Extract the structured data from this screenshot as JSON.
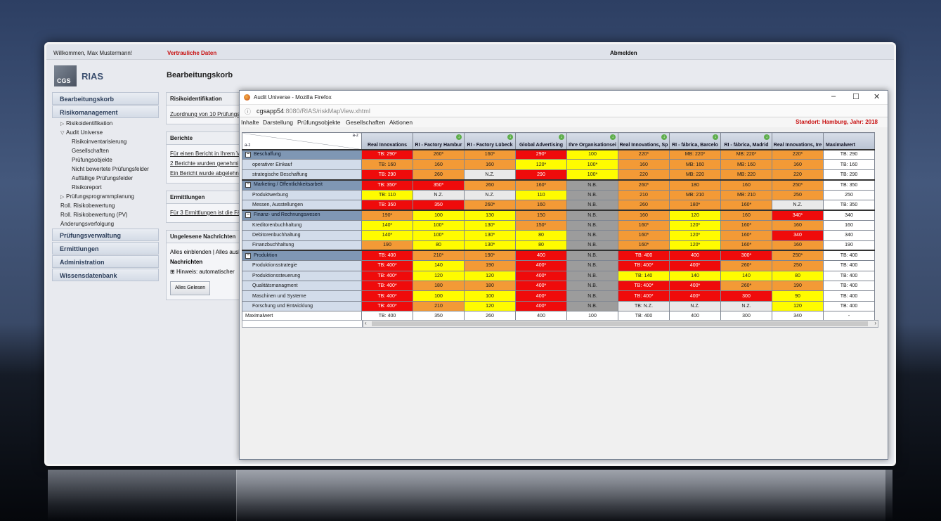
{
  "topbar": {
    "welcome": "Willkommen, Max Mustermann!",
    "confidential": "Vertrauliche Daten",
    "logout": "Abmelden"
  },
  "logo": {
    "text": "CGS",
    "app": "RIAS"
  },
  "page_title": "Bearbeitungskorb",
  "nav": [
    {
      "type": "head",
      "label": "Bearbeitungskorb"
    },
    {
      "type": "head",
      "label": "Risikomanagement"
    },
    {
      "type": "sub1",
      "label": "Risikoidentifikation",
      "icon": "triangle-right-icon"
    },
    {
      "type": "sub1",
      "label": "Audit Universe",
      "icon": "triangle-down-icon"
    },
    {
      "type": "sub2",
      "label": "Risikoinventarisierung"
    },
    {
      "type": "sub2",
      "label": "Gesellschaften"
    },
    {
      "type": "sub2",
      "label": "Prüfungsobjekte"
    },
    {
      "type": "sub2",
      "label": "Nicht bewertete Prüfungsfelder"
    },
    {
      "type": "sub2",
      "label": "Auffällige Prüfungsfelder"
    },
    {
      "type": "sub2",
      "label": "Risikoreport"
    },
    {
      "type": "sub1",
      "label": "Prüfungsprogrammplanung",
      "icon": "triangle-right-icon"
    },
    {
      "type": "sub1",
      "label": "Roll. Risikobewertung"
    },
    {
      "type": "sub1",
      "label": "Roll. Risikobewertung (PV)"
    },
    {
      "type": "sub1",
      "label": "Änderungsverfolgung"
    },
    {
      "type": "head",
      "label": "Prüfungsverwaltung"
    },
    {
      "type": "head",
      "label": "Ermittlungen"
    },
    {
      "type": "head",
      "label": "Administration"
    },
    {
      "type": "head",
      "label": "Wissensdatenbank"
    }
  ],
  "panels": {
    "risiko": {
      "title": "Risikoidentifikation",
      "link": "Zuordnung von 10 Prüfungs"
    },
    "berichte": {
      "title": "Berichte",
      "line1": "Für einen Bericht in Ihrem V",
      "line2": "2 Berichte wurden genehmi",
      "line3": "Ein Bericht wurde abgelehn"
    },
    "ermittlungen": {
      "title": "Ermittlungen",
      "line1": "Für 3 Ermittlungen ist die Fä"
    },
    "nachrichten": {
      "title": "Ungelesene Nachrichten",
      "toggle": "Alles einblenden | Alles ausb",
      "header": "Nachrichten",
      "item": "Hinweis: automatischer",
      "button": "Alles Gelesen"
    }
  },
  "firefox": {
    "title": "Audit Universe - Mozilla Firefox",
    "url_host": "cgsapp54",
    "url_path": ":8080/RIAS/riskMapView.xhtml",
    "menu": [
      "Inhalte",
      "Darstellung",
      "Prüfungsobjekte",
      "Gesellschaften",
      "Aktionen"
    ],
    "location": "Standort: Hamburg, Jahr: 2018"
  },
  "riskmap": {
    "corner_top": "a-z",
    "corner_bottom": "a-z",
    "columns": [
      "Real Innovations",
      "RI - Factory Hambur",
      "RI - Factory Lübeck",
      "Global Advertising",
      "Ihre Organisationsei",
      "Real Innovations, Sp",
      "RI - fábrica, Barcelo",
      "RI - fábrica, Madrid",
      "Real Innovations, Ire",
      "Maximalwert"
    ],
    "rows": [
      {
        "label": "Beschaffung",
        "group": true,
        "cells": [
          [
            "TB: 290*",
            "r"
          ],
          [
            "260*",
            "o"
          ],
          [
            "160*",
            "o"
          ],
          [
            "290*",
            "r"
          ],
          [
            "100",
            "y"
          ],
          [
            "220*",
            "o"
          ],
          [
            "MB: 220*",
            "o"
          ],
          [
            "MB: 220*",
            "o"
          ],
          [
            "220*",
            "o"
          ],
          [
            "TB: 290",
            "w"
          ]
        ]
      },
      {
        "label": "operativer Einkauf",
        "group": false,
        "cells": [
          [
            "TB: 160",
            "o"
          ],
          [
            "160",
            "o"
          ],
          [
            "160",
            "o"
          ],
          [
            "120*",
            "y"
          ],
          [
            "100*",
            "y"
          ],
          [
            "160",
            "o"
          ],
          [
            "MB: 160",
            "o"
          ],
          [
            "MB: 160",
            "o"
          ],
          [
            "160",
            "o"
          ],
          [
            "TB: 160",
            "w"
          ]
        ]
      },
      {
        "label": "strategische Beschaffung",
        "group": false,
        "cells": [
          [
            "TB: 290",
            "r"
          ],
          [
            "260",
            "o"
          ],
          [
            "N.Z.",
            "lg"
          ],
          [
            "290",
            "r"
          ],
          [
            "100*",
            "y"
          ],
          [
            "220",
            "o"
          ],
          [
            "MB: 220",
            "o"
          ],
          [
            "MB: 220",
            "o"
          ],
          [
            "220",
            "o"
          ],
          [
            "TB: 290",
            "w"
          ]
        ]
      },
      {
        "label": "Marketing / Öffentlichkeitsarbeit",
        "group": true,
        "cells": [
          [
            "TB: 350*",
            "r"
          ],
          [
            "350*",
            "r"
          ],
          [
            "260",
            "o"
          ],
          [
            "160*",
            "o"
          ],
          [
            "N.B.",
            "g"
          ],
          [
            "260*",
            "o"
          ],
          [
            "180",
            "o"
          ],
          [
            "160",
            "o"
          ],
          [
            "250*",
            "o"
          ],
          [
            "TB: 350",
            "w"
          ]
        ]
      },
      {
        "label": "Produktwerbung",
        "group": false,
        "cells": [
          [
            "TB: 110",
            "y"
          ],
          [
            "N.Z.",
            "lg"
          ],
          [
            "N.Z.",
            "lg"
          ],
          [
            "110",
            "y"
          ],
          [
            "N.B.",
            "g"
          ],
          [
            "210",
            "o"
          ],
          [
            "MB: 210",
            "o"
          ],
          [
            "MB: 210",
            "o"
          ],
          [
            "250",
            "o"
          ],
          [
            "250",
            "w"
          ]
        ]
      },
      {
        "label": "Messen, Ausstellungen",
        "group": false,
        "cells": [
          [
            "TB: 350",
            "r"
          ],
          [
            "350",
            "r"
          ],
          [
            "260*",
            "o"
          ],
          [
            "160",
            "o"
          ],
          [
            "N.B.",
            "g"
          ],
          [
            "260",
            "o"
          ],
          [
            "180*",
            "o"
          ],
          [
            "160*",
            "o"
          ],
          [
            "N.Z.",
            "lg"
          ],
          [
            "TB: 350",
            "w"
          ]
        ]
      },
      {
        "label": "Finanz- und Rechnungswesen",
        "group": true,
        "cells": [
          [
            "190*",
            "o"
          ],
          [
            "100",
            "y"
          ],
          [
            "130",
            "y"
          ],
          [
            "150",
            "o"
          ],
          [
            "N.B.",
            "g"
          ],
          [
            "160",
            "o"
          ],
          [
            "120",
            "y"
          ],
          [
            "160",
            "o"
          ],
          [
            "340*",
            "r"
          ],
          [
            "340",
            "w"
          ]
        ]
      },
      {
        "label": "Kreditorenbuchhaltung",
        "group": false,
        "cells": [
          [
            "140*",
            "y"
          ],
          [
            "100*",
            "y"
          ],
          [
            "130*",
            "y"
          ],
          [
            "150*",
            "o"
          ],
          [
            "N.B.",
            "g"
          ],
          [
            "160*",
            "o"
          ],
          [
            "120*",
            "y"
          ],
          [
            "160*",
            "o"
          ],
          [
            "160",
            "o"
          ],
          [
            "160",
            "w"
          ]
        ]
      },
      {
        "label": "Debitorenbuchhaltung",
        "group": false,
        "cells": [
          [
            "140*",
            "y"
          ],
          [
            "100*",
            "y"
          ],
          [
            "130*",
            "y"
          ],
          [
            "80",
            "y"
          ],
          [
            "N.B.",
            "g"
          ],
          [
            "160*",
            "o"
          ],
          [
            "120*",
            "y"
          ],
          [
            "160*",
            "o"
          ],
          [
            "340",
            "r"
          ],
          [
            "340",
            "w"
          ]
        ]
      },
      {
        "label": "Finanzbuchhaltung",
        "group": false,
        "cells": [
          [
            "190",
            "o"
          ],
          [
            "80",
            "y"
          ],
          [
            "130*",
            "y"
          ],
          [
            "80",
            "y"
          ],
          [
            "N.B.",
            "g"
          ],
          [
            "160*",
            "o"
          ],
          [
            "120*",
            "y"
          ],
          [
            "160*",
            "o"
          ],
          [
            "160",
            "o"
          ],
          [
            "190",
            "w"
          ]
        ]
      },
      {
        "label": "Produktion",
        "group": true,
        "cells": [
          [
            "TB: 400",
            "r"
          ],
          [
            "210*",
            "o"
          ],
          [
            "190*",
            "o"
          ],
          [
            "400",
            "r"
          ],
          [
            "N.B.",
            "g"
          ],
          [
            "TB: 400",
            "r"
          ],
          [
            "400",
            "r"
          ],
          [
            "300*",
            "r"
          ],
          [
            "250*",
            "o"
          ],
          [
            "TB: 400",
            "w"
          ]
        ]
      },
      {
        "label": "Produktionsstrategie",
        "group": false,
        "cells": [
          [
            "TB: 400*",
            "r"
          ],
          [
            "140",
            "y"
          ],
          [
            "190",
            "o"
          ],
          [
            "400*",
            "r"
          ],
          [
            "N.B.",
            "g"
          ],
          [
            "TB: 400*",
            "r"
          ],
          [
            "400*",
            "r"
          ],
          [
            "260*",
            "o"
          ],
          [
            "250",
            "o"
          ],
          [
            "TB: 400",
            "w"
          ]
        ]
      },
      {
        "label": "Produktionssteuerung",
        "group": false,
        "cells": [
          [
            "TB: 400*",
            "r"
          ],
          [
            "120",
            "y"
          ],
          [
            "120",
            "y"
          ],
          [
            "400*",
            "r"
          ],
          [
            "N.B.",
            "g"
          ],
          [
            "TB: 140",
            "y"
          ],
          [
            "140",
            "y"
          ],
          [
            "140",
            "y"
          ],
          [
            "80",
            "y"
          ],
          [
            "TB: 400",
            "w"
          ]
        ]
      },
      {
        "label": "Qualitätsmanagment",
        "group": false,
        "cells": [
          [
            "TB: 400*",
            "r"
          ],
          [
            "180",
            "o"
          ],
          [
            "180",
            "o"
          ],
          [
            "400*",
            "r"
          ],
          [
            "N.B.",
            "g"
          ],
          [
            "TB: 400*",
            "r"
          ],
          [
            "400*",
            "r"
          ],
          [
            "260*",
            "o"
          ],
          [
            "190",
            "o"
          ],
          [
            "TB: 400",
            "w"
          ]
        ]
      },
      {
        "label": "Maschinen und Systeme",
        "group": false,
        "cells": [
          [
            "TB: 400*",
            "r"
          ],
          [
            "100",
            "y"
          ],
          [
            "100",
            "y"
          ],
          [
            "400*",
            "r"
          ],
          [
            "N.B.",
            "g"
          ],
          [
            "TB: 400*",
            "r"
          ],
          [
            "400*",
            "r"
          ],
          [
            "300",
            "r"
          ],
          [
            "90",
            "y"
          ],
          [
            "TB: 400",
            "w"
          ]
        ]
      },
      {
        "label": "Forschung und Entwicklung",
        "group": false,
        "cells": [
          [
            "TB: 400*",
            "r"
          ],
          [
            "210",
            "o"
          ],
          [
            "120",
            "y"
          ],
          [
            "400*",
            "r"
          ],
          [
            "N.B.",
            "g"
          ],
          [
            "TB: N.Z.",
            "lg"
          ],
          [
            "N.Z.",
            "lg"
          ],
          [
            "N.Z.",
            "lg"
          ],
          [
            "120",
            "y"
          ],
          [
            "TB: 400",
            "w"
          ]
        ]
      },
      {
        "label": "Maximalwert",
        "group": false,
        "max": true,
        "cells": [
          [
            "TB: 400",
            "w"
          ],
          [
            "350",
            "w"
          ],
          [
            "260",
            "w"
          ],
          [
            "400",
            "w"
          ],
          [
            "100",
            "w"
          ],
          [
            "TB: 400",
            "w"
          ],
          [
            "400",
            "w"
          ],
          [
            "300",
            "w"
          ],
          [
            "340",
            "w"
          ],
          [
            "-",
            "w"
          ]
        ]
      }
    ]
  }
}
